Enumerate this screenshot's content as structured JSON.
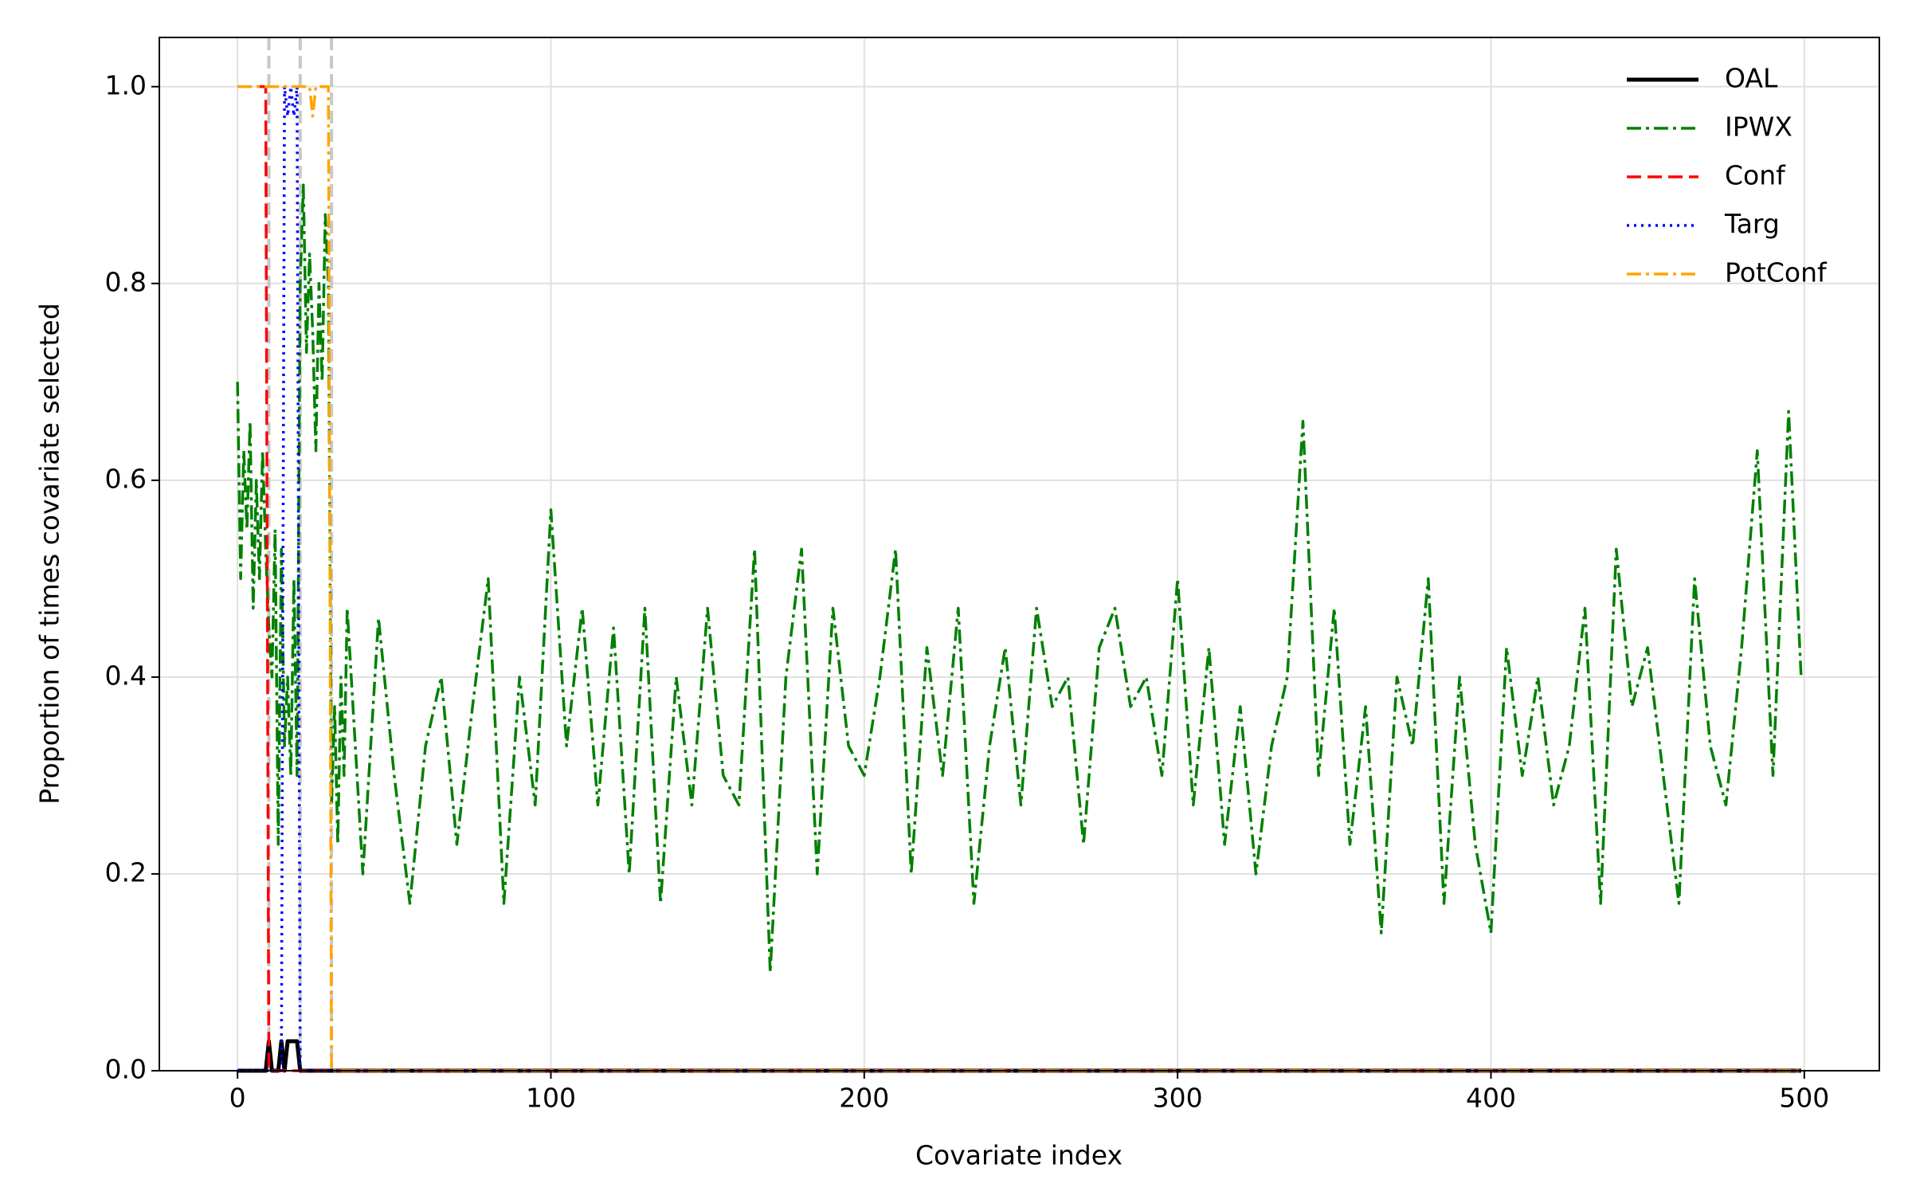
{
  "chart_data": {
    "type": "line",
    "x_label": "Covariate index",
    "y_label": "Proportion of times covariate selected",
    "x": [
      0,
      1,
      2,
      3,
      4,
      5,
      6,
      7,
      8,
      9,
      10,
      11,
      12,
      13,
      14,
      15,
      16,
      17,
      18,
      19,
      20,
      21,
      22,
      23,
      24,
      25,
      26,
      27,
      28,
      29,
      30,
      31,
      32,
      33,
      34,
      35,
      40,
      45,
      50,
      55,
      60,
      65,
      70,
      75,
      80,
      85,
      90,
      95,
      100,
      105,
      110,
      115,
      120,
      125,
      130,
      135,
      140,
      145,
      150,
      155,
      160,
      165,
      170,
      175,
      180,
      185,
      190,
      195,
      200,
      205,
      210,
      215,
      220,
      225,
      230,
      235,
      240,
      245,
      250,
      255,
      260,
      265,
      270,
      275,
      280,
      285,
      290,
      295,
      300,
      305,
      310,
      315,
      320,
      325,
      330,
      335,
      340,
      345,
      350,
      355,
      360,
      365,
      370,
      375,
      380,
      385,
      390,
      395,
      400,
      405,
      410,
      415,
      420,
      425,
      430,
      435,
      440,
      445,
      450,
      455,
      460,
      465,
      470,
      475,
      480,
      485,
      490,
      495,
      499
    ],
    "series": [
      {
        "name": "OAL",
        "color": "#000000",
        "linestyle": "solid",
        "values": [
          0,
          0,
          0,
          0,
          0,
          0,
          0,
          0,
          0,
          0,
          0.03,
          0,
          0,
          0,
          0.03,
          0,
          0.03,
          0.03,
          0.03,
          0.03,
          0,
          0,
          0,
          0,
          0,
          0,
          0,
          0,
          0,
          0,
          0,
          0,
          0,
          0,
          0,
          0,
          0,
          0,
          0,
          0,
          0,
          0,
          0,
          0,
          0,
          0,
          0,
          0,
          0,
          0,
          0,
          0,
          0,
          0,
          0,
          0,
          0,
          0,
          0,
          0,
          0,
          0,
          0,
          0,
          0,
          0,
          0,
          0,
          0,
          0,
          0,
          0,
          0,
          0,
          0,
          0,
          0,
          0,
          0,
          0,
          0,
          0,
          0,
          0,
          0,
          0,
          0,
          0,
          0,
          0,
          0,
          0,
          0,
          0,
          0,
          0,
          0,
          0,
          0,
          0,
          0,
          0,
          0,
          0,
          0,
          0,
          0,
          0,
          0,
          0,
          0,
          0,
          0,
          0,
          0,
          0,
          0,
          0,
          0,
          0,
          0,
          0,
          0,
          0,
          0,
          0,
          0,
          0,
          0
        ]
      },
      {
        "name": "IPWX",
        "color": "#008000",
        "linestyle": "dashdot",
        "values": [
          0.7,
          0.5,
          0.63,
          0.55,
          0.66,
          0.47,
          0.6,
          0.5,
          0.63,
          0.53,
          0.45,
          0.4,
          0.55,
          0.23,
          0.53,
          0.33,
          0.4,
          0.3,
          0.5,
          0.3,
          0.8,
          0.9,
          0.73,
          0.83,
          0.75,
          0.63,
          0.8,
          0.7,
          0.87,
          0.8,
          0.27,
          0.37,
          0.23,
          0.4,
          0.3,
          0.47,
          0.2,
          0.46,
          0.3,
          0.17,
          0.33,
          0.4,
          0.23,
          0.37,
          0.5,
          0.17,
          0.4,
          0.27,
          0.57,
          0.33,
          0.47,
          0.27,
          0.45,
          0.2,
          0.47,
          0.17,
          0.4,
          0.27,
          0.47,
          0.3,
          0.27,
          0.53,
          0.1,
          0.4,
          0.53,
          0.2,
          0.47,
          0.33,
          0.3,
          0.4,
          0.53,
          0.2,
          0.43,
          0.3,
          0.47,
          0.17,
          0.33,
          0.43,
          0.27,
          0.47,
          0.37,
          0.4,
          0.23,
          0.43,
          0.47,
          0.37,
          0.4,
          0.3,
          0.5,
          0.27,
          0.43,
          0.23,
          0.37,
          0.2,
          0.33,
          0.4,
          0.66,
          0.3,
          0.47,
          0.23,
          0.37,
          0.14,
          0.4,
          0.33,
          0.5,
          0.17,
          0.4,
          0.23,
          0.14,
          0.43,
          0.3,
          0.4,
          0.27,
          0.33,
          0.47,
          0.17,
          0.53,
          0.37,
          0.43,
          0.3,
          0.17,
          0.5,
          0.33,
          0.27,
          0.43,
          0.63,
          0.3,
          0.67,
          0.4
        ]
      },
      {
        "name": "Conf",
        "color": "#ff0000",
        "linestyle": "dashed",
        "values": [
          1,
          1,
          1,
          1,
          1,
          1,
          1,
          1,
          1,
          1,
          0,
          0,
          0,
          0,
          0,
          0,
          0,
          0,
          0,
          0,
          0,
          0,
          0,
          0,
          0,
          0,
          0,
          0,
          0,
          0,
          0,
          0,
          0,
          0,
          0,
          0,
          0,
          0,
          0,
          0,
          0,
          0,
          0,
          0,
          0,
          0,
          0,
          0,
          0,
          0,
          0,
          0,
          0,
          0,
          0,
          0,
          0,
          0,
          0,
          0,
          0,
          0,
          0,
          0,
          0,
          0,
          0,
          0,
          0,
          0,
          0,
          0,
          0,
          0,
          0,
          0,
          0,
          0,
          0,
          0,
          0,
          0,
          0,
          0,
          0,
          0,
          0,
          0,
          0,
          0,
          0,
          0,
          0,
          0,
          0,
          0,
          0,
          0,
          0,
          0,
          0,
          0,
          0,
          0,
          0,
          0,
          0,
          0,
          0,
          0,
          0,
          0,
          0,
          0,
          0,
          0,
          0,
          0,
          0,
          0,
          0,
          0,
          0,
          0,
          0,
          0,
          0,
          0,
          0
        ]
      },
      {
        "name": "Targ",
        "color": "#0000ff",
        "linestyle": "dotted",
        "values": [
          0,
          0,
          0,
          0,
          0,
          0,
          0,
          0,
          0,
          0,
          0,
          0,
          0,
          0,
          0,
          1,
          0.97,
          1,
          0.97,
          1,
          0,
          0,
          0,
          0,
          0,
          0,
          0,
          0,
          0,
          0,
          0,
          0,
          0,
          0,
          0,
          0,
          0,
          0,
          0,
          0,
          0,
          0,
          0,
          0,
          0,
          0,
          0,
          0,
          0,
          0,
          0,
          0,
          0,
          0,
          0,
          0,
          0,
          0,
          0,
          0,
          0,
          0,
          0,
          0,
          0,
          0,
          0,
          0,
          0,
          0,
          0,
          0,
          0,
          0,
          0,
          0,
          0,
          0,
          0,
          0,
          0,
          0,
          0,
          0,
          0,
          0,
          0,
          0,
          0,
          0,
          0,
          0,
          0,
          0,
          0,
          0,
          0,
          0,
          0,
          0,
          0,
          0,
          0,
          0,
          0,
          0,
          0,
          0,
          0,
          0,
          0,
          0,
          0,
          0,
          0,
          0,
          0,
          0,
          0,
          0,
          0,
          0,
          0,
          0,
          0,
          0,
          0,
          0,
          0
        ]
      },
      {
        "name": "PotConf",
        "color": "#ffa500",
        "linestyle": "dashdot",
        "values": [
          1,
          1,
          1,
          1,
          1,
          1,
          1,
          1,
          1,
          1,
          1,
          1,
          1,
          1,
          1,
          1,
          1,
          1,
          1,
          1,
          1,
          1,
          1,
          1,
          0.97,
          1,
          1,
          1,
          1,
          1,
          0,
          0,
          0,
          0,
          0,
          0,
          0,
          0,
          0,
          0,
          0,
          0,
          0,
          0,
          0,
          0,
          0,
          0,
          0,
          0,
          0,
          0,
          0,
          0,
          0,
          0,
          0,
          0,
          0,
          0,
          0,
          0,
          0,
          0,
          0,
          0,
          0,
          0,
          0,
          0,
          0,
          0,
          0,
          0,
          0,
          0,
          0,
          0,
          0,
          0,
          0,
          0,
          0,
          0,
          0,
          0,
          0,
          0,
          0,
          0,
          0,
          0,
          0,
          0,
          0,
          0,
          0,
          0,
          0,
          0,
          0,
          0,
          0,
          0,
          0,
          0,
          0,
          0,
          0,
          0,
          0,
          0,
          0,
          0,
          0,
          0,
          0,
          0,
          0,
          0,
          0,
          0,
          0,
          0,
          0,
          0,
          0,
          0,
          0
        ]
      }
    ],
    "vlines": [
      10,
      20,
      30
    ],
    "xlim": [
      -24.95,
      523.95
    ],
    "xticks": [
      0,
      100,
      200,
      300,
      400,
      500
    ],
    "ylim": [
      0,
      1.05
    ],
    "yticks": [
      {
        "value": 0,
        "label": "0.0"
      },
      0.2,
      0.4,
      0.6,
      0.8,
      {
        "value": 1,
        "label": "1.0"
      }
    ],
    "grid": true,
    "legend": "upper right"
  }
}
